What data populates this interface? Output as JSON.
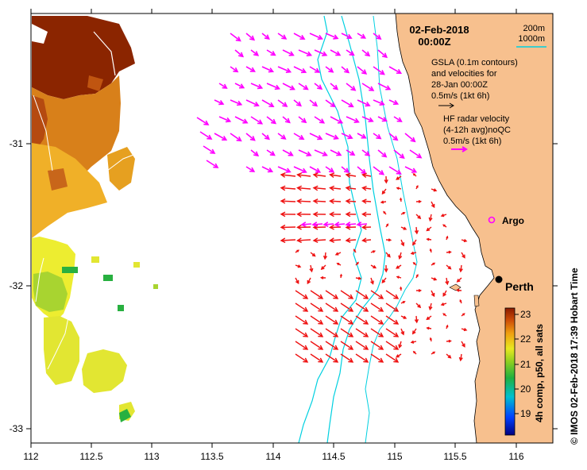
{
  "map": {
    "title_date": "02-Feb-2018",
    "title_time": "00:00Z",
    "contour_legend": {
      "label_200m": "200m",
      "label_1000m": "1000m"
    },
    "gsla_legend": {
      "line1": "GSLA (0.1m contours)",
      "line2": "and velocities for",
      "line3": "28-Jan 00:00Z",
      "line4": "0.5m/s (1kt 6h)"
    },
    "hf_legend": {
      "line1": "HF radar velocity",
      "line2": "(4-12h avg)noQC",
      "line3": "0.5m/s (1kt 6h)"
    },
    "argo_label": "Argo",
    "city_label": "Perth",
    "side_label": "©  IMOS 02-Feb-2018 17:39 Hobart Time",
    "colorbar": {
      "title": "4h comp, p50, all sats",
      "ticks": [
        "23",
        "22",
        "21",
        "20",
        "19"
      ]
    },
    "x_ticks": [
      "112",
      "112.5",
      "113",
      "113.5",
      "114",
      "114.5",
      "115",
      "115.5",
      "116"
    ],
    "y_ticks": [
      "-31",
      "-32",
      "-33"
    ],
    "colors": {
      "land": "#f7c08e",
      "hf_arrow": "#ff00ff",
      "gsla_arrow": "#ee1111",
      "isobath": "#00d0e0",
      "argo": "#ff00ff"
    }
  }
}
